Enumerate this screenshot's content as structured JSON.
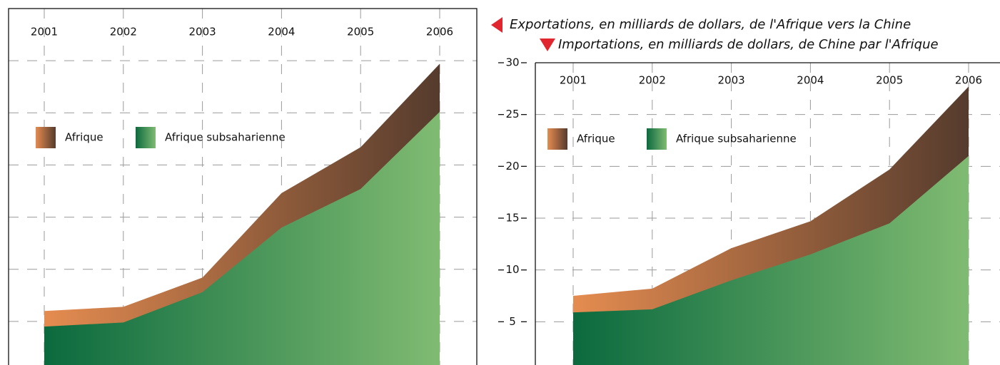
{
  "chart_data": [
    {
      "type": "area",
      "title": "Exportations, en milliards de dollars, de l'Afrique vers la Chine",
      "categories": [
        "2001",
        "2002",
        "2003",
        "2004",
        "2005",
        "2006"
      ],
      "series": [
        {
          "name": "Afrique",
          "gradient": [
            "#e58c50",
            "#553b2d"
          ],
          "values": [
            6,
            6.4,
            9.2,
            17.3,
            21.7,
            29.7
          ]
        },
        {
          "name": "Afrique subsaharienne",
          "gradient": [
            "#0b6a3e",
            "#80bb72"
          ],
          "values": [
            4.5,
            4.9,
            7.8,
            14,
            17.7,
            25.1
          ]
        }
      ],
      "ylim": [
        0,
        35
      ],
      "yticks": [
        5,
        10,
        15,
        20,
        25,
        30
      ],
      "grid": true
    },
    {
      "type": "area",
      "title": "Importations, en milliards de dollars, de Chine par l'Afrique",
      "categories": [
        "2001",
        "2002",
        "2003",
        "2004",
        "2005",
        "2006"
      ],
      "series": [
        {
          "name": "Afrique",
          "gradient": [
            "#e58c50",
            "#553b2d"
          ],
          "values": [
            7.5,
            8.2,
            12.1,
            14.7,
            19.7,
            27.7
          ]
        },
        {
          "name": "Afrique subsaharienne",
          "gradient": [
            "#0b6a3e",
            "#80bb72"
          ],
          "values": [
            5.9,
            6.2,
            9,
            11.5,
            14.5,
            21
          ]
        }
      ],
      "ylim": [
        0,
        30
      ],
      "yticks": [
        5,
        10,
        15,
        20,
        25,
        30
      ],
      "grid": true
    }
  ]
}
